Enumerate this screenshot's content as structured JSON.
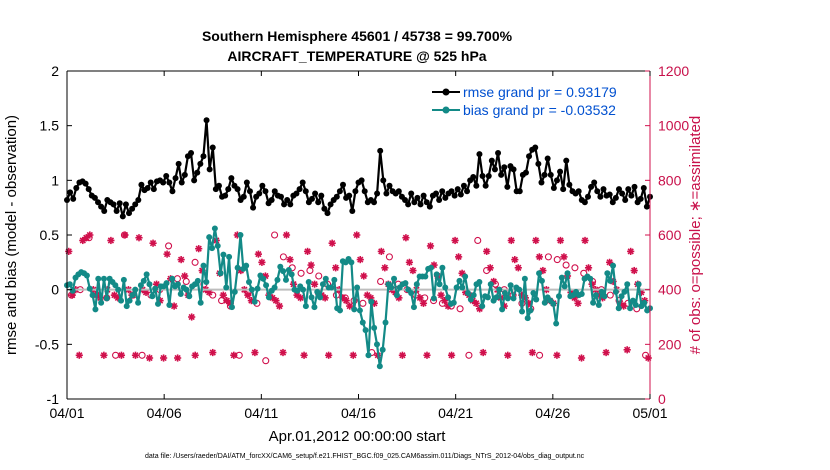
{
  "chart_data": {
    "type": "line",
    "title_line1": "Southern Hemisphere 45601 / 45738 = 99.700%",
    "title_line2": "AIRCRAFT_TEMPERATURE @ 525 hPa",
    "xlabel": "Apr.01,2012 00:00:00 start",
    "ylabel": "rmse and bias (model - observation)",
    "ylabel_right": "# of obs: o=possible; ∗=assimilated",
    "x_tick_labels": [
      "04/01",
      "04/06",
      "04/11",
      "04/16",
      "04/21",
      "04/26",
      "05/01"
    ],
    "xlim": [
      0,
      30
    ],
    "ylim": [
      -1,
      2
    ],
    "y_ticks": [
      "-1",
      "-0.5",
      "0",
      "0.5",
      "1",
      "1.5",
      "2"
    ],
    "ylim_right": [
      0,
      1200
    ],
    "y_ticks_right": [
      "0",
      "200",
      "400",
      "600",
      "800",
      "1000",
      "1200"
    ],
    "footnote": "data file: /Users/raeder/DAI/ATM_forcXX/CAM6_setup/f.e21.FHIST_BGC.f09_025.CAM6assim.011/Diags_NTrS_2012-04/obs_diag_output.nc",
    "colors": {
      "rmse": "#000000",
      "bias": "#138a87",
      "obs": "#d0104c",
      "zero_line": "#bdbdbd",
      "legend_text": "#0050d0"
    },
    "series": [
      {
        "name": "rmse grand pr = 0.93179",
        "values": [
          0.82,
          0.89,
          0.83,
          0.93,
          0.98,
          0.99,
          0.97,
          0.92,
          0.86,
          0.84,
          0.8,
          0.76,
          0.72,
          0.82,
          0.8,
          0.78,
          0.72,
          0.79,
          0.67,
          0.78,
          0.7,
          0.74,
          0.78,
          0.82,
          0.96,
          0.91,
          0.93,
          0.98,
          0.92,
          0.99,
          1.0,
          0.98,
          1.04,
          0.98,
          0.9,
          1.02,
          1.15,
          0.98,
          1.05,
          1.22,
          1.25,
          1.0,
          1.07,
          1.15,
          1.22,
          1.55,
          1.1,
          1.3,
          0.92,
          0.95,
          0.85,
          0.86,
          0.92,
          1.02,
          0.95,
          0.92,
          0.82,
          0.85,
          0.98,
          0.9,
          0.75,
          0.85,
          0.88,
          0.95,
          0.9,
          0.79,
          0.82,
          0.9,
          0.86,
          0.85,
          0.78,
          0.82,
          0.78,
          0.86,
          0.88,
          0.92,
          0.98,
          0.9,
          0.8,
          0.83,
          0.88,
          0.8,
          0.86,
          0.74,
          0.7,
          0.78,
          0.82,
          0.85,
          0.9,
          0.96,
          0.84,
          0.86,
          0.72,
          0.9,
          0.98,
          1.0,
          0.9,
          0.8,
          0.82,
          0.8,
          0.88,
          1.27,
          1.0,
          0.88,
          0.95,
          0.9,
          0.88,
          0.9,
          0.85,
          0.82,
          0.78,
          0.88,
          0.8,
          0.84,
          0.78,
          0.86,
          0.8,
          0.76,
          0.86,
          0.88,
          0.82,
          0.9,
          0.84,
          0.88,
          0.9,
          0.86,
          0.92,
          0.87,
          0.95,
          0.9,
          1.0,
          1.03,
          0.95,
          1.24,
          1.04,
          0.95,
          1.04,
          1.18,
          1.1,
          1.25,
          1.05,
          1.12,
          0.94,
          1.13,
          1.1,
          0.9,
          0.9,
          1.05,
          1.07,
          1.22,
          1.28,
          1.3,
          1.15,
          0.98,
          1.05,
          1.2,
          1.05,
          0.93,
          1.0,
          1.08,
          0.92,
          1.18,
          0.96,
          0.9,
          0.88,
          0.9,
          0.82,
          0.8,
          0.85,
          0.94,
          0.98,
          0.9,
          0.85,
          0.92,
          0.86,
          0.87,
          0.8,
          0.84,
          0.92,
          0.88,
          0.82,
          0.92,
          0.86,
          0.94,
          0.8,
          0.83,
          0.93,
          0.76,
          0.85
        ]
      },
      {
        "name": "bias grand pr = -0.03532",
        "values": [
          0.04,
          0.05,
          -0.01,
          0.11,
          0.14,
          0.16,
          0.15,
          0.13,
          0.01,
          -0.05,
          -0.18,
          0.1,
          -0.12,
          0.1,
          -0.08,
          0.1,
          0.07,
          0.04,
          0.0,
          -0.1,
          0.09,
          -0.15,
          -0.1,
          -0.05,
          0.0,
          -0.12,
          0.04,
          0.08,
          0.14,
          0.05,
          -0.06,
          0.01,
          -0.13,
          0.03,
          0.03,
          0.06,
          -0.14,
          0.1,
          0.03,
          0.05,
          -0.04,
          0.02,
          0.0,
          -0.06,
          0.03,
          0.05,
          0.08,
          -0.12,
          0.22,
          0.07,
          0.48,
          0.38,
          0.56,
          0.4,
          0.15,
          0.32,
          0.02,
          0.3,
          -0.16,
          -0.02,
          0.2,
          0.5,
          0.19,
          0.22,
          0.07,
          0.0,
          -0.11,
          0.01,
          0.13,
          0.1,
          0.04,
          -0.07,
          -0.01,
          0.02,
          0.09,
          0.21,
          0.17,
          0.09,
          0.18,
          0.14,
          0.0,
          -0.01,
          0.03,
          0.0,
          -0.15,
          0.07,
          -0.07,
          -0.16,
          -0.02,
          -0.07,
          0.05,
          0.1,
          0.02,
          0.02,
          0.09,
          -0.17,
          -0.19,
          0.26,
          0.25,
          0.28,
          0.25,
          -0.18,
          0.02,
          -0.19,
          -0.3,
          -0.37,
          -0.6,
          -0.11,
          -0.35,
          -0.5,
          -0.7,
          -0.55,
          -0.3,
          0.05,
          0.02,
          0.1,
          -0.05,
          0.02,
          0.05,
          0.06,
          0.0,
          -0.03,
          -0.16,
          0.05,
          0.12,
          0.12,
          0.12,
          0.19,
          0.2,
          -0.08,
          0.14,
          0.05,
          0.2,
          0.02,
          -0.07,
          -0.13,
          -0.12,
          0.02,
          0.08,
          0.02,
          0.12,
          -0.03,
          -0.09,
          -0.05,
          0.05,
          0.07,
          -0.15,
          -0.06,
          -0.07,
          0.05,
          -0.1,
          -0.07,
          0.0,
          -0.18,
          -0.03,
          -0.08,
          0.04,
          -0.08,
          0.02,
          0.0,
          -0.2,
          0.1,
          -0.26,
          -0.19,
          -0.03,
          -0.09,
          0.15,
          0.08,
          -0.12,
          -0.07,
          -0.1,
          -0.13,
          -0.31,
          -0.06,
          0.11,
          0.03,
          0.15,
          -0.06,
          -0.05,
          -0.02,
          -0.05,
          -0.04,
          0.1,
          0.12,
          0.1,
          -0.12,
          -0.05,
          -0.14,
          -0.02,
          -0.06,
          0.15,
          0.08,
          0.22,
          -0.02,
          -0.17,
          -0.06,
          -0.02,
          0.05,
          -0.17,
          -0.1,
          -0.14,
          0.05,
          -0.15,
          -0.12,
          -0.19,
          -0.17
        ]
      }
    ],
    "obs_assimilated": [
      540,
      380,
      400,
      160,
      580,
      590,
      600,
      400,
      380,
      370,
      160,
      400,
      580,
      380,
      370,
      160,
      600,
      400,
      380,
      160,
      590,
      400,
      390,
      150,
      570,
      420,
      360,
      150,
      530,
      440,
      340,
      150,
      510,
      450,
      380,
      300,
      160,
      550,
      470,
      400,
      390,
      170,
      580,
      460,
      380,
      360,
      350,
      160,
      600,
      470,
      400,
      380,
      360,
      170,
      530,
      500,
      450,
      380,
      370,
      360,
      340,
      170,
      600,
      510,
      420,
      380,
      370,
      160,
      540,
      490,
      420,
      390,
      380,
      370,
      160,
      570,
      480,
      400,
      370,
      360,
      340,
      160,
      600,
      510,
      450,
      380,
      370,
      350,
      160,
      540,
      480,
      420,
      400,
      390,
      370,
      160,
      590,
      500,
      470,
      400,
      370,
      350,
      160,
      560,
      490,
      450,
      380,
      360,
      340,
      160,
      580,
      520,
      460,
      390,
      380,
      360,
      350,
      330,
      170,
      540,
      480,
      430,
      400,
      370,
      340,
      160,
      580,
      510,
      480,
      380,
      370,
      350,
      170,
      580,
      520,
      470,
      400,
      360,
      350,
      160,
      580,
      520,
      450,
      390,
      370,
      350,
      150,
      580,
      480,
      420,
      400,
      380,
      370,
      170,
      500,
      430,
      400,
      350,
      340,
      180,
      540,
      470,
      420,
      390,
      360,
      150
    ],
    "obs_possible": [
      380,
      400,
      590,
      380,
      370,
      160,
      600,
      380,
      160,
      380,
      400,
      560,
      440,
      430,
      500,
      420,
      380,
      360,
      340,
      160,
      390,
      350,
      140,
      600,
      520,
      480,
      460,
      470,
      450,
      420,
      380,
      370,
      360,
      350,
      170,
      430,
      520,
      420,
      400,
      380,
      370,
      360,
      350,
      340,
      330,
      160,
      580,
      470,
      420,
      400,
      380,
      350,
      330,
      160,
      520,
      510,
      490,
      480,
      460,
      430,
      400,
      380,
      360,
      350,
      330,
      160
    ]
  }
}
